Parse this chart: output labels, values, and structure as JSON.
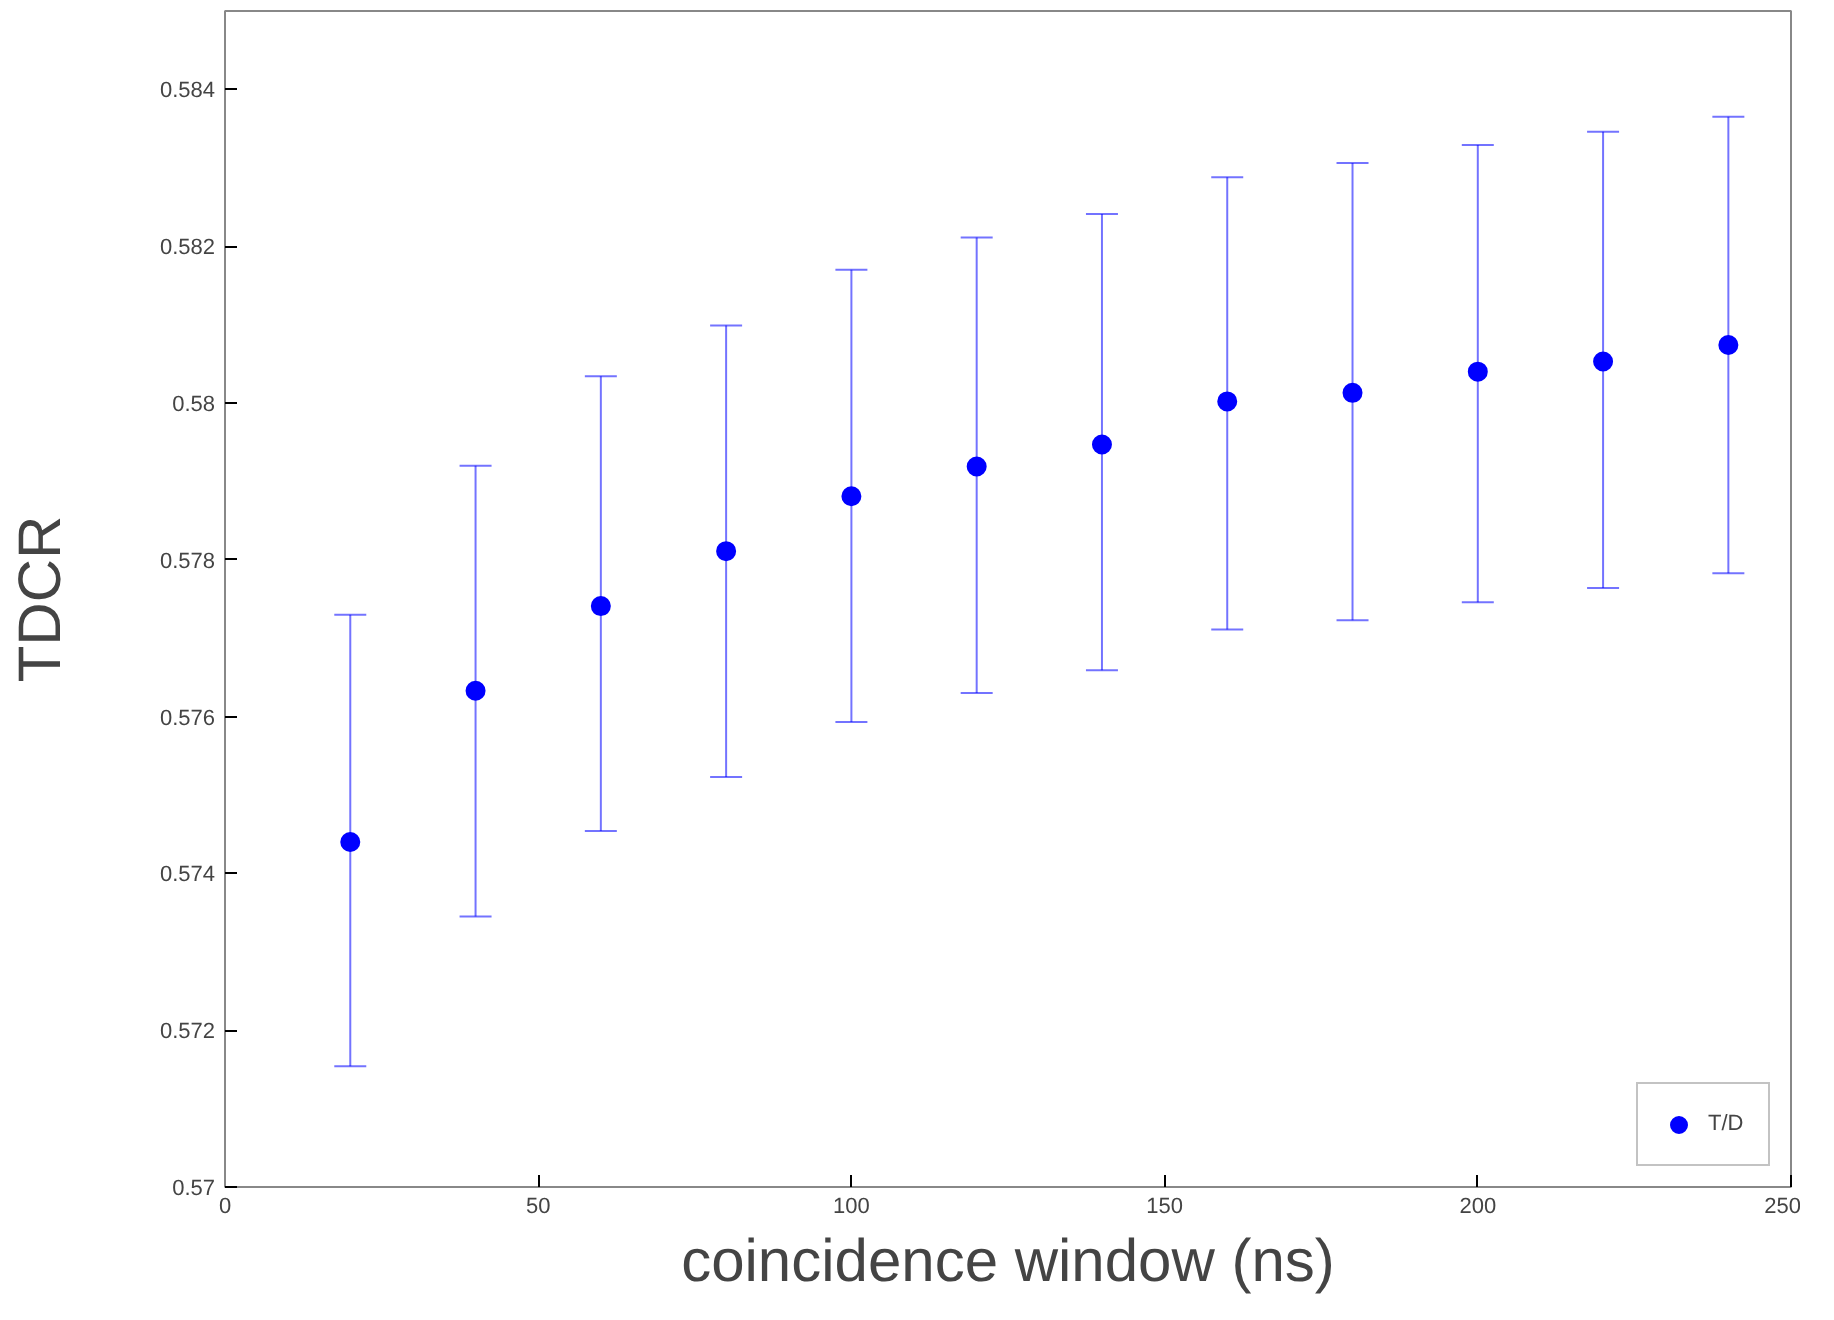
{
  "chart_data": {
    "type": "scatter",
    "xlabel": "coincidence window (ns)",
    "ylabel": "TDCR",
    "x": [
      20,
      40,
      60,
      80,
      100,
      120,
      140,
      160,
      180,
      200,
      220,
      240
    ],
    "series": [
      {
        "name": "T/D",
        "color": "#0000ff",
        "values": [
          0.5744,
          0.57633,
          0.57741,
          0.57811,
          0.57881,
          0.57919,
          0.57947,
          0.58002,
          0.58013,
          0.5804,
          0.58053,
          0.58074
        ],
        "errors": [
          [
            0.57154,
            0.5773
          ],
          [
            0.57345,
            0.5792
          ],
          [
            0.57454,
            0.58034
          ],
          [
            0.57523,
            0.58099
          ],
          [
            0.57593,
            0.5817
          ],
          [
            0.5763,
            0.58211
          ],
          [
            0.57659,
            0.58241
          ],
          [
            0.57711,
            0.58288
          ],
          [
            0.57723,
            0.58306
          ],
          [
            0.57746,
            0.58329
          ],
          [
            0.57764,
            0.58346
          ],
          [
            0.57783,
            0.58365
          ]
        ]
      }
    ],
    "xlim": [
      0,
      250
    ],
    "ylim": [
      0.57,
      0.585
    ],
    "xticks": [
      0,
      50,
      100,
      150,
      200,
      250
    ],
    "yticks": [
      0.57,
      0.572,
      0.574,
      0.576,
      0.578,
      0.58,
      0.582,
      0.584
    ],
    "marker": "circle",
    "grid": false,
    "legend": "bottom right"
  }
}
